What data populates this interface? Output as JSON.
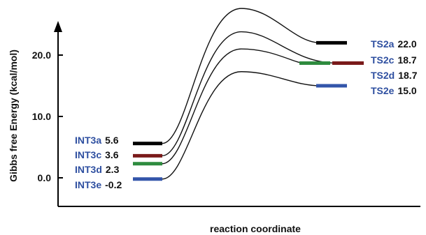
{
  "chart_data": {
    "type": "energy-diagram",
    "xlabel": "reaction coordinate",
    "ylabel": "Gibbs free Energy (kcal/mol)",
    "yticks": [
      0.0,
      10.0,
      20.0
    ],
    "ytick_labels": [
      "0.0",
      "10.0",
      "20.0"
    ],
    "ylim": [
      -2,
      27
    ],
    "grid": false,
    "label_color": "#2e4fa0",
    "value_color": "#111111",
    "line_color": "#111111",
    "pathways": [
      {
        "intermediate": {
          "name": "INT3a",
          "value": 5.6,
          "value_text": "5.6"
        },
        "transition_state": {
          "name": "TS2a",
          "value": 22.0,
          "value_text": "22.0"
        },
        "barrier_peak": 27.6,
        "color": "#000000"
      },
      {
        "intermediate": {
          "name": "INT3c",
          "value": 3.6,
          "value_text": "3.6"
        },
        "transition_state": {
          "name": "TS2c",
          "value": 18.7,
          "value_text": "18.7"
        },
        "barrier_peak": 23.8,
        "color": "#7a1a1a"
      },
      {
        "intermediate": {
          "name": "INT3d",
          "value": 2.3,
          "value_text": "2.3"
        },
        "transition_state": {
          "name": "TS2d",
          "value": 18.7,
          "value_text": "18.7"
        },
        "barrier_peak": 21.0,
        "color": "#2e8b3e"
      },
      {
        "intermediate": {
          "name": "INT3e",
          "value": -0.2,
          "value_text": "-0.2"
        },
        "transition_state": {
          "name": "TS2e",
          "value": 15.0,
          "value_text": "15.0"
        },
        "barrier_peak": 17.3,
        "color": "#3355aa"
      }
    ]
  }
}
